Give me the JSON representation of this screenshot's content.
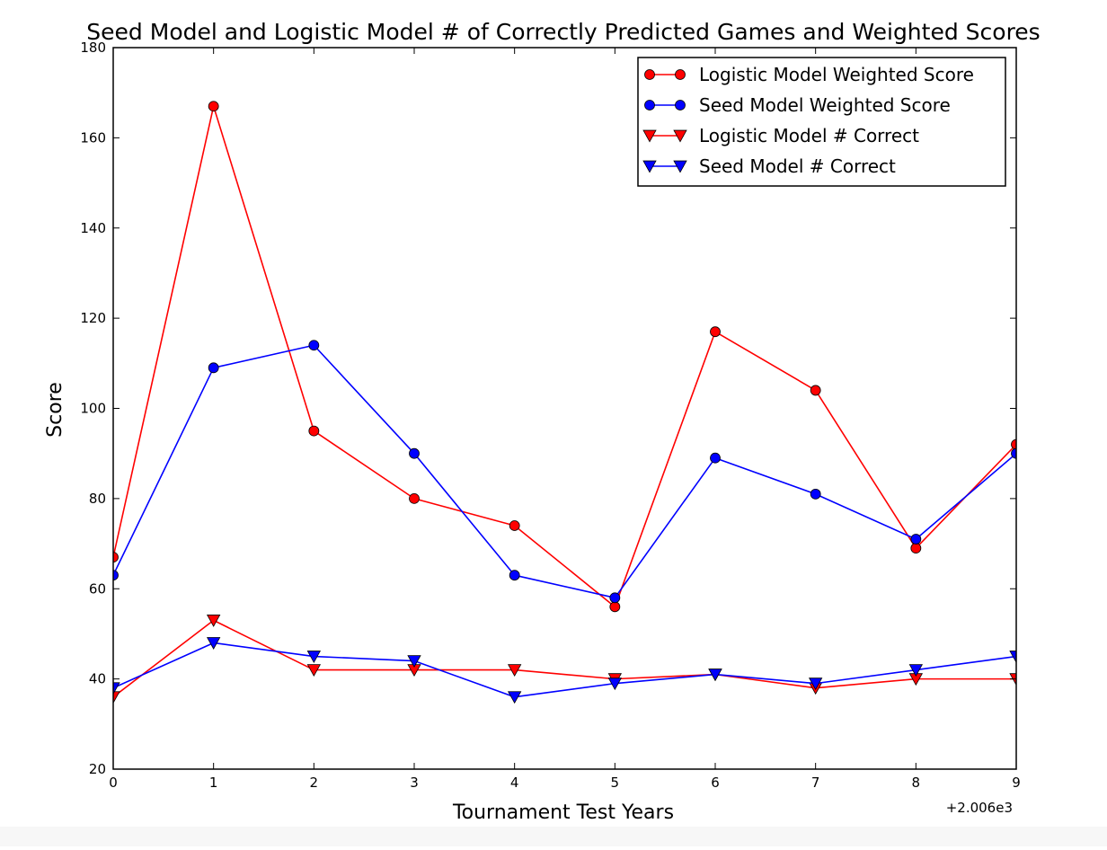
{
  "chart_data": {
    "type": "line",
    "title": "Seed Model and Logistic Model # of Correctly Predicted Games and Weighted Scores",
    "xlabel": "Tournament Test Years",
    "ylabel": "Score",
    "x_offset_label": "+2.006e3",
    "x": [
      0,
      1,
      2,
      3,
      4,
      5,
      6,
      7,
      8,
      9
    ],
    "x_tick_labels": [
      "0",
      "1",
      "2",
      "3",
      "4",
      "5",
      "6",
      "7",
      "8",
      "9"
    ],
    "y_tick_labels": [
      "20",
      "40",
      "60",
      "80",
      "100",
      "120",
      "140",
      "160",
      "180"
    ],
    "y_ticks": [
      20,
      40,
      60,
      80,
      100,
      120,
      140,
      160,
      180
    ],
    "xlim": [
      0,
      9
    ],
    "ylim": [
      20,
      180
    ],
    "grid": false,
    "legend_position": "top-right",
    "series": [
      {
        "name": "Logistic Model Weighted Score",
        "color": "#ff0000",
        "marker": "circle",
        "values": [
          67,
          167,
          95,
          80,
          74,
          56,
          117,
          104,
          69,
          92
        ]
      },
      {
        "name": "Seed Model Weighted Score",
        "color": "#0000ff",
        "marker": "circle",
        "values": [
          63,
          109,
          114,
          90,
          63,
          58,
          89,
          81,
          71,
          90
        ]
      },
      {
        "name": "Logistic Model # Correct",
        "color": "#ff0000",
        "marker": "triangle-down",
        "values": [
          36,
          53,
          42,
          42,
          42,
          40,
          41,
          38,
          40,
          40
        ]
      },
      {
        "name": "Seed Model # Correct",
        "color": "#0000ff",
        "marker": "triangle-down",
        "values": [
          38,
          48,
          45,
          44,
          36,
          39,
          41,
          39,
          42,
          45
        ]
      }
    ]
  }
}
